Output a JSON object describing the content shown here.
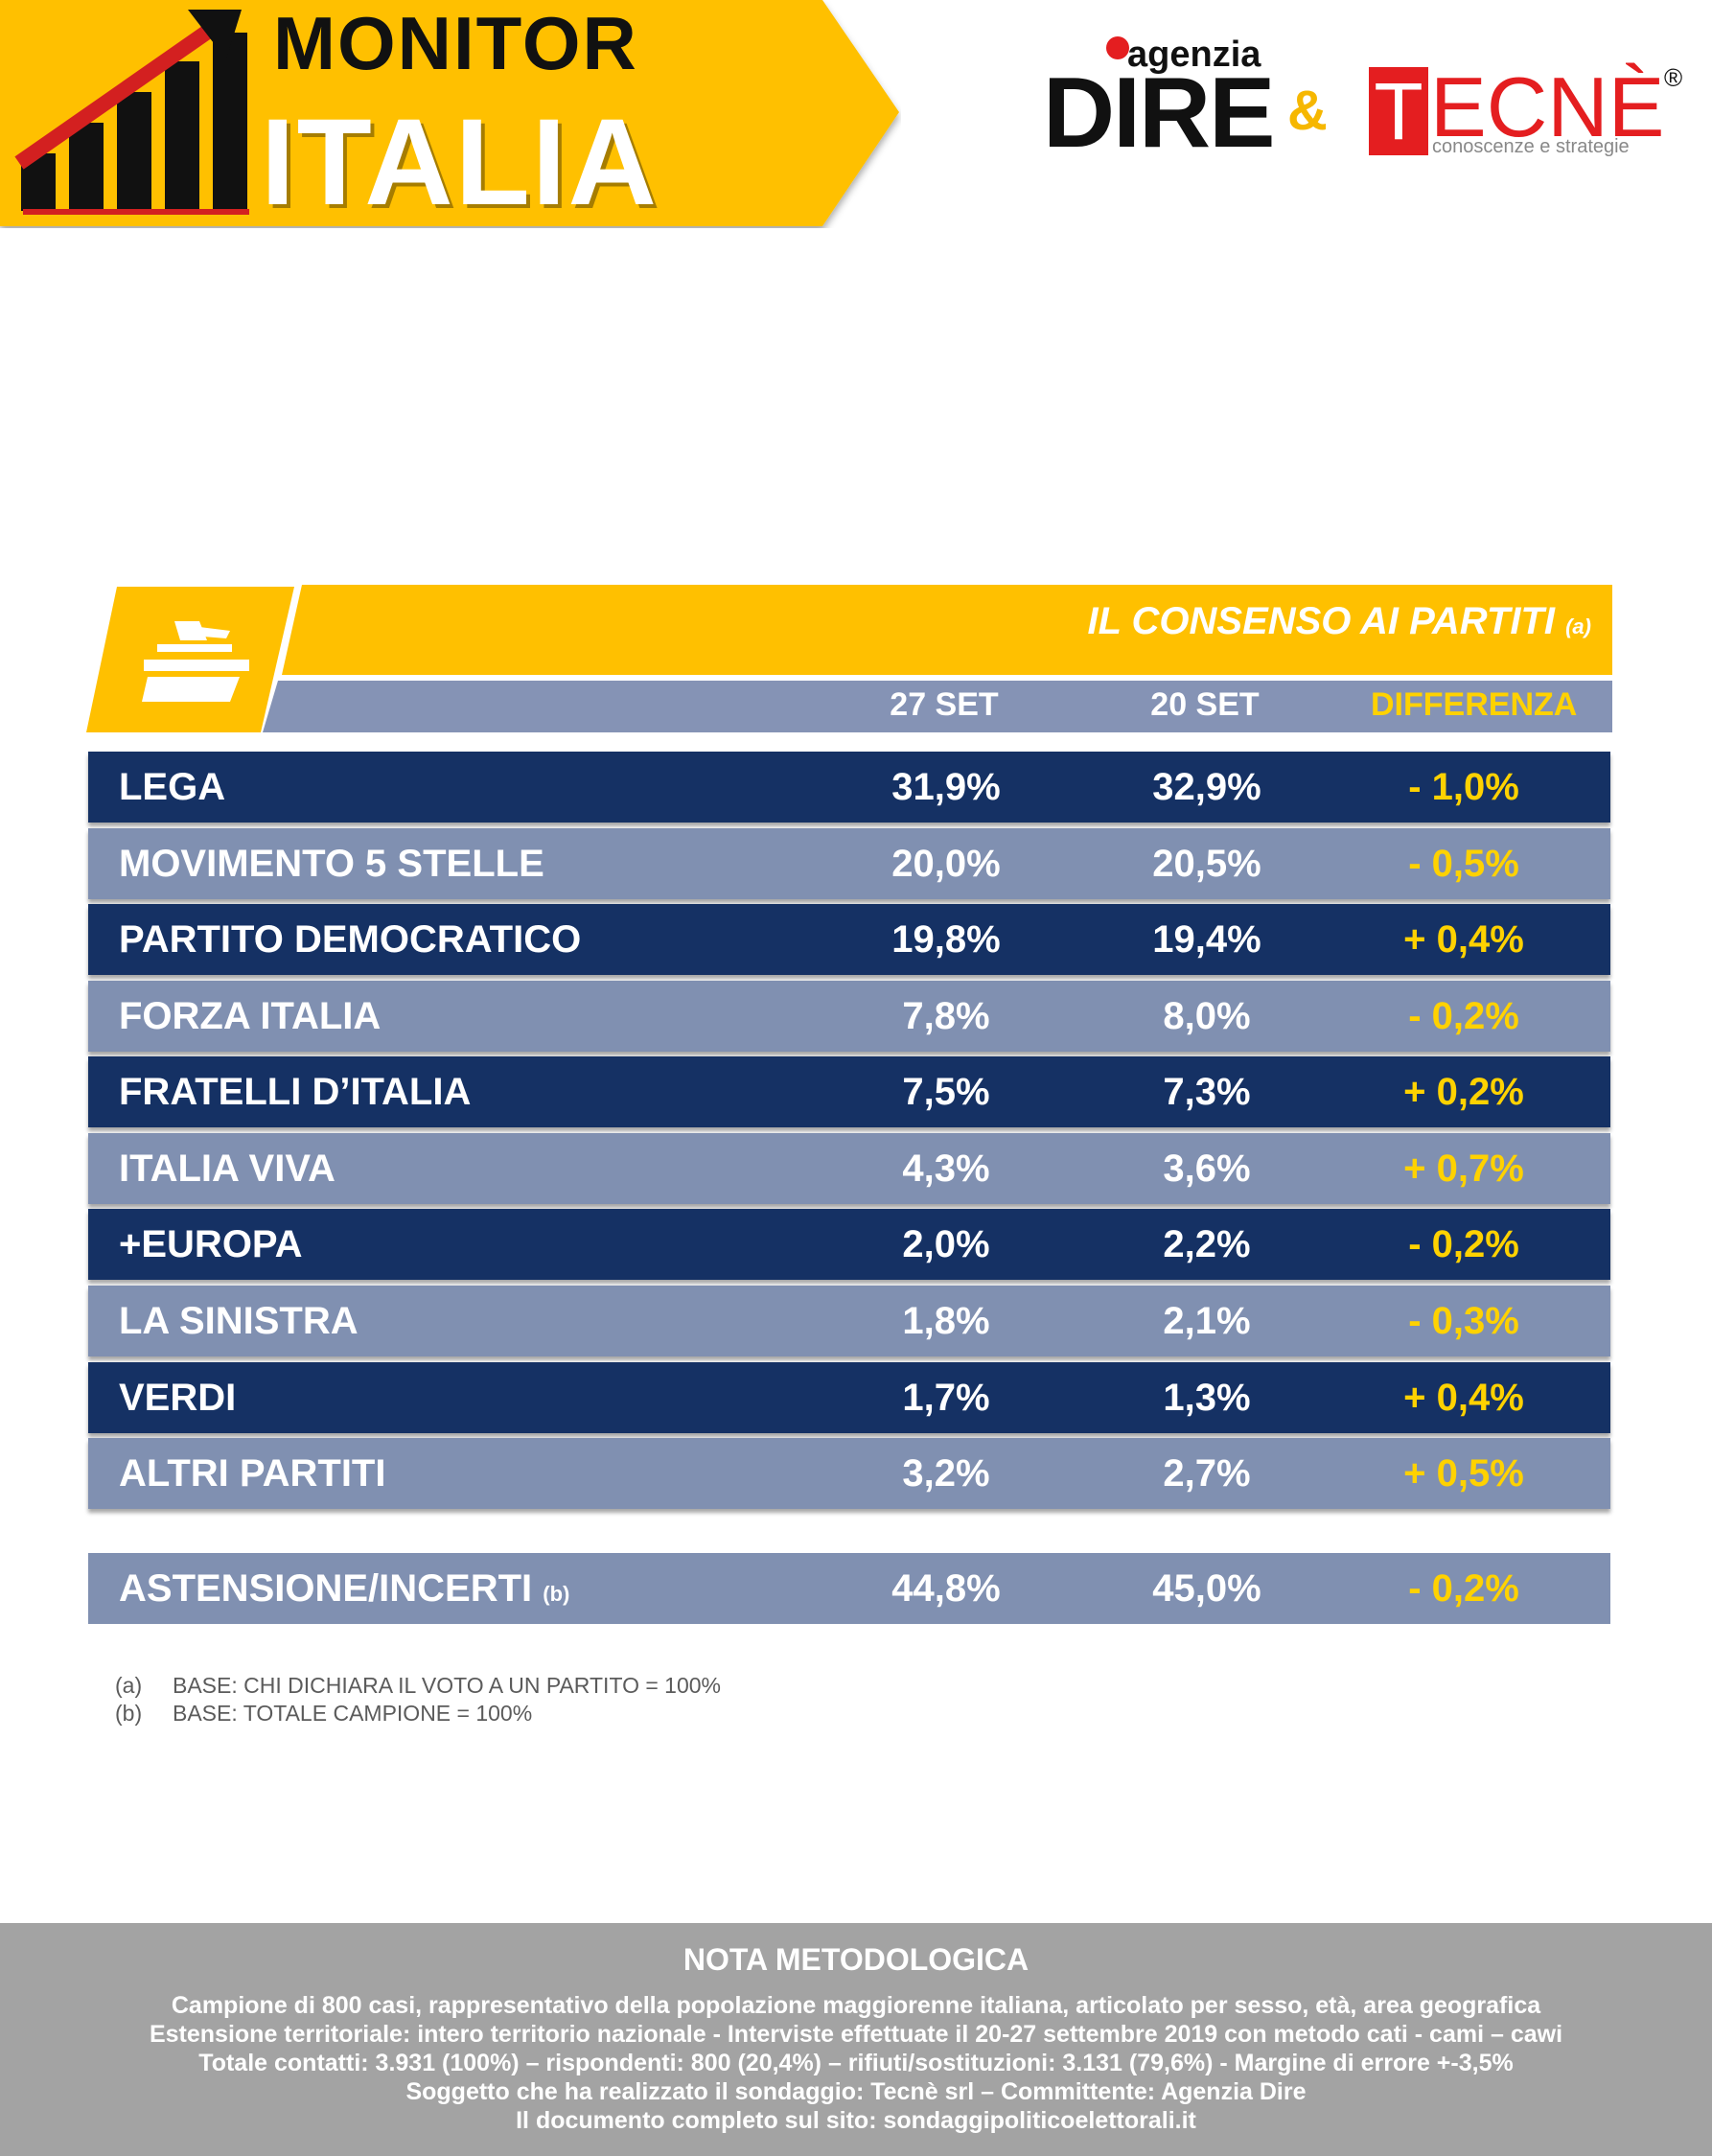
{
  "header": {
    "logo_title": "MONITOR",
    "logo_subtitle": "ITALIA",
    "partner1_small": "agenzia",
    "partner1_name": "DIRE",
    "ampersand": "&",
    "partner2_letter": "T",
    "partner2_rest": "ECNÈ",
    "partner2_reg": "®",
    "partner2_tagline": "conoscenze e strategie"
  },
  "table": {
    "title": "IL CONSENSO AI PARTITI",
    "title_note": "(a)",
    "columns": [
      "27 SET",
      "20 SET",
      "DIFFERENZA"
    ],
    "rows": [
      {
        "party": "LEGA",
        "v1": "31,9%",
        "v2": "32,9%",
        "diff": "- 1,0%"
      },
      {
        "party": "MOVIMENTO 5 STELLE",
        "v1": "20,0%",
        "v2": "20,5%",
        "diff": "- 0,5%"
      },
      {
        "party": "PARTITO DEMOCRATICO",
        "v1": "19,8%",
        "v2": "19,4%",
        "diff": "+ 0,4%"
      },
      {
        "party": "FORZA ITALIA",
        "v1": "7,8%",
        "v2": "8,0%",
        "diff": "- 0,2%"
      },
      {
        "party": "FRATELLI D’ITALIA",
        "v1": "7,5%",
        "v2": "7,3%",
        "diff": "+ 0,2%"
      },
      {
        "party": "ITALIA VIVA",
        "v1": "4,3%",
        "v2": "3,6%",
        "diff": "+ 0,7%"
      },
      {
        "party": "+EUROPA",
        "v1": "2,0%",
        "v2": "2,2%",
        "diff": "- 0,2%"
      },
      {
        "party": "LA SINISTRA",
        "v1": "1,8%",
        "v2": "2,1%",
        "diff": "- 0,3%"
      },
      {
        "party": "VERDI",
        "v1": "1,7%",
        "v2": "1,3%",
        "diff": "+ 0,4%"
      },
      {
        "party": "ALTRI PARTITI",
        "v1": "3,2%",
        "v2": "2,7%",
        "diff": "+ 0,5%"
      }
    ],
    "abstention": {
      "party": "ASTENSIONE/INCERTI",
      "note": "(b)",
      "v1": "44,8%",
      "v2": "45,0%",
      "diff": "- 0,2%"
    }
  },
  "footnotes": [
    {
      "tag": "(a)",
      "text": "BASE: CHI DICHIARA IL VOTO A UN PARTITO = 100%"
    },
    {
      "tag": "(b)",
      "text": "BASE: TOTALE CAMPIONE = 100%"
    }
  ],
  "method": {
    "title": "NOTA METODOLOGICA",
    "lines": [
      "Campione di 800 casi, rappresentativo della popolazione maggiorenne italiana, articolato per sesso, età, area geografica",
      "Estensione territoriale: intero territorio nazionale  - Interviste effettuate il 20-27 settembre 2019 con metodo cati - cami – cawi",
      "Totale contatti: 3.931 (100%) – rispondenti:  800 (20,4%) – rifiuti/sostituzioni: 3.131 (79,6%) - Margine di errore +-3,5%",
      "Soggetto che ha realizzato il sondaggio: Tecnè srl – Committente: Agenzia Dire",
      "Il documento completo sul sito: sondaggipoliticoelettorali.it"
    ]
  },
  "colors": {
    "yellow": "#ffc000",
    "dark_row": "#153164",
    "light_row": "#8090b1",
    "header_bar": "#8593b5",
    "diff_text": "#ffd200",
    "method_bg": "#a3a3a3",
    "brand_red": "#e41e20"
  },
  "chart_data": {
    "type": "table",
    "title": "IL CONSENSO AI PARTITI",
    "columns": [
      "27 SET",
      "20 SET",
      "DIFFERENZA"
    ],
    "categories": [
      "LEGA",
      "MOVIMENTO 5 STELLE",
      "PARTITO DEMOCRATICO",
      "FORZA ITALIA",
      "FRATELLI D’ITALIA",
      "ITALIA VIVA",
      "+EUROPA",
      "LA SINISTRA",
      "VERDI",
      "ALTRI PARTITI",
      "ASTENSIONE/INCERTI"
    ],
    "series": [
      {
        "name": "27 SET",
        "values": [
          31.9,
          20.0,
          19.8,
          7.8,
          7.5,
          4.3,
          2.0,
          1.8,
          1.7,
          3.2,
          44.8
        ]
      },
      {
        "name": "20 SET",
        "values": [
          32.9,
          20.5,
          19.4,
          8.0,
          7.3,
          3.6,
          2.2,
          2.1,
          1.3,
          2.7,
          45.0
        ]
      },
      {
        "name": "DIFFERENZA",
        "values": [
          -1.0,
          -0.5,
          0.4,
          -0.2,
          0.2,
          0.7,
          -0.2,
          -0.3,
          0.4,
          0.5,
          -0.2
        ]
      }
    ]
  }
}
